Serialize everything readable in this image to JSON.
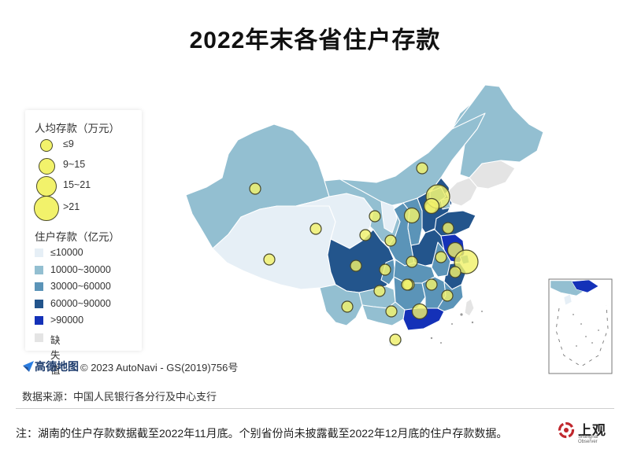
{
  "title": "2022年末各省住户存款",
  "legend": {
    "size_title": "人均存款（万元）",
    "size_items": [
      {
        "label": "≤9",
        "tier": 1
      },
      {
        "label": "9~15",
        "tier": 2
      },
      {
        "label": "15~21",
        "tier": 3
      },
      {
        "label": ">21",
        "tier": 4
      }
    ],
    "color_title": "住户存款（亿元）",
    "color_items": [
      {
        "label": "≤10000",
        "color": "#e6eff6"
      },
      {
        "label": "10000~30000",
        "color": "#93bfd1"
      },
      {
        "label": "30000~60000",
        "color": "#5b94b8"
      },
      {
        "label": "60000~90000",
        "color": "#23558c"
      },
      {
        "label": ">90000",
        "color": "#1431b8"
      },
      {
        "label": "缺失值",
        "color": "#e4e4e4"
      }
    ]
  },
  "provinces": [
    {
      "name": "新疆",
      "deposit_class": "10000~30000",
      "per_capita_class": "≤9"
    },
    {
      "name": "西藏",
      "deposit_class": "≤10000",
      "per_capita_class": "≤9"
    },
    {
      "name": "青海",
      "deposit_class": "≤10000",
      "per_capita_class": "≤9"
    },
    {
      "name": "甘肃",
      "deposit_class": "10000~30000",
      "per_capita_class": "≤9"
    },
    {
      "name": "内蒙古",
      "deposit_class": "10000~30000",
      "per_capita_class": "≤9"
    },
    {
      "name": "宁夏",
      "deposit_class": "≤10000",
      "per_capita_class": "≤9"
    },
    {
      "name": "陕西",
      "deposit_class": "30000~60000",
      "per_capita_class": "≤9"
    },
    {
      "name": "四川",
      "deposit_class": "60000~90000",
      "per_capita_class": "≤9"
    },
    {
      "name": "重庆",
      "deposit_class": "30000~60000",
      "per_capita_class": "≤9"
    },
    {
      "name": "云南",
      "deposit_class": "10000~30000",
      "per_capita_class": "≤9"
    },
    {
      "name": "贵州",
      "deposit_class": "10000~30000",
      "per_capita_class": "≤9"
    },
    {
      "name": "广西",
      "deposit_class": "10000~30000",
      "per_capita_class": "≤9"
    },
    {
      "name": "广东",
      "deposit_class": ">90000",
      "per_capita_class": "9~15"
    },
    {
      "name": "海南",
      "deposit_class": "≤10000",
      "per_capita_class": "≤9"
    },
    {
      "name": "湖南",
      "deposit_class": "30000~60000",
      "per_capita_class": "≤9"
    },
    {
      "name": "湖北",
      "deposit_class": "30000~60000",
      "per_capita_class": "≤9"
    },
    {
      "name": "河南",
      "deposit_class": "60000~90000",
      "per_capita_class": "≤9"
    },
    {
      "name": "山西",
      "deposit_class": "30000~60000",
      "per_capita_class": "9~15"
    },
    {
      "name": "河北",
      "deposit_class": "60000~90000",
      "per_capita_class": "≤9"
    },
    {
      "name": "北京",
      "deposit_class": "30000~60000",
      "per_capita_class": ">21"
    },
    {
      "name": "天津",
      "deposit_class": "10000~30000",
      "per_capita_class": "9~15"
    },
    {
      "name": "山东",
      "deposit_class": "60000~90000",
      "per_capita_class": "≤9"
    },
    {
      "name": "江苏",
      "deposit_class": ">90000",
      "per_capita_class": "9~15"
    },
    {
      "name": "上海",
      "deposit_class": "30000~60000",
      "per_capita_class": ">21"
    },
    {
      "name": "浙江",
      "deposit_class": "60000~90000",
      "per_capita_class": "≤9"
    },
    {
      "name": "安徽",
      "deposit_class": "30000~60000",
      "per_capita_class": "≤9"
    },
    {
      "name": "江西",
      "deposit_class": "30000~60000",
      "per_capita_class": "≤9"
    },
    {
      "name": "福建",
      "deposit_class": "30000~60000",
      "per_capita_class": "≤9"
    },
    {
      "name": "辽宁",
      "deposit_class": "缺失值",
      "per_capita_class": ""
    },
    {
      "name": "吉林",
      "deposit_class": "缺失值",
      "per_capita_class": ""
    },
    {
      "name": "黑龙江",
      "deposit_class": "10000~30000",
      "per_capita_class": ""
    },
    {
      "name": "台湾",
      "deposit_class": "缺失值",
      "per_capita_class": ""
    }
  ],
  "attribution": {
    "brand": "高德地图",
    "copyright": "© 2023 AutoNavi - GS(2019)756号"
  },
  "source": "数据来源：中国人民银行各分行及中心支行",
  "note": "注：湖南的住户存款数据截至2022年11月底。个别省份尚未披露截至2022年12月底的住户存款数据。",
  "brand_logo": {
    "name": "上观",
    "sub": "Shanghai Observer",
    "color": "#c0272d"
  },
  "colors": {
    "bubble_fill": "#f2f26b",
    "bubble_stroke": "#4a4a2a",
    "border": "#ffffff"
  }
}
